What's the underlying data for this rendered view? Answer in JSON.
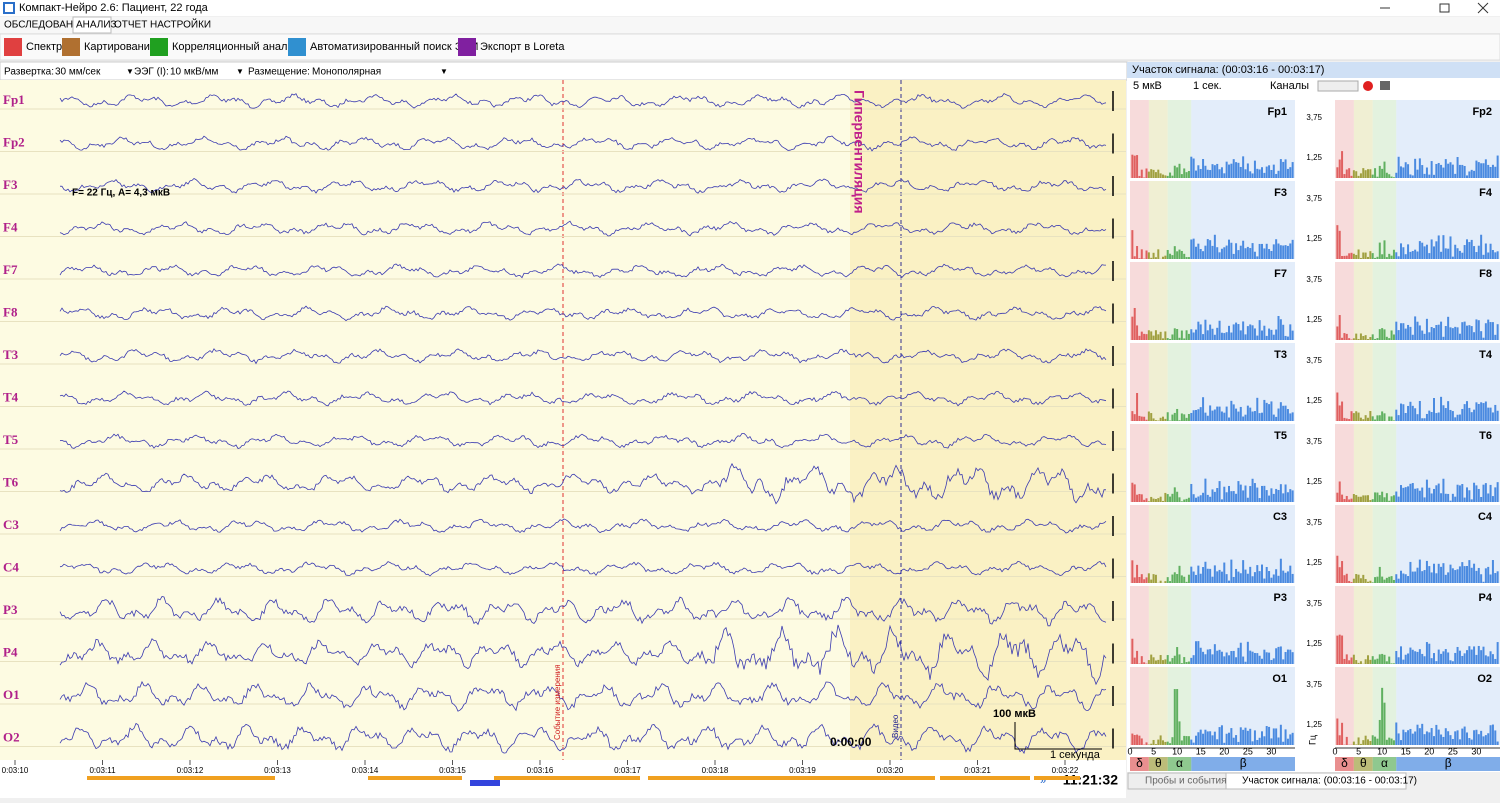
{
  "window": {
    "title": "Компакт-Нейро 2.6: Пациент, 22 года"
  },
  "menu": [
    "ОБСЛЕДОВАНИЕ",
    "АНАЛИЗ",
    "ОТЧЕТ",
    "НАСТРОЙКИ"
  ],
  "toolbar": [
    "Спектр",
    "Картирование",
    "Корреляционный анализ",
    "Автоматизированный поиск ЭПИ",
    "Экспорт в Loreta"
  ],
  "controls": {
    "sweep_label": "Развертка:",
    "sweep": "30 мм/сек",
    "gain_label": "ЭЭГ (I):",
    "gain": "10 мкВ/мм",
    "montage_label": "Размещение:",
    "montage": "Монополярная"
  },
  "eeg": {
    "channels": [
      "Fp1",
      "Fp2",
      "F3",
      "F4",
      "F7",
      "F8",
      "T3",
      "T4",
      "T5",
      "T6",
      "C3",
      "C4",
      "P3",
      "P4",
      "O1",
      "O2"
    ],
    "annotations": {
      "hyperventilation": "Гипервентиляция",
      "measure": "F= 22 Гц, A= 4,3 мкВ",
      "event": "Событие измерения",
      "video": "Видео",
      "start": "0:00:00",
      "amp_scale": "100 мкВ",
      "time_scale": "1 секунда"
    },
    "time_labels": [
      "0:03:10",
      "0:03:11",
      "0:03:12",
      "0:03:13",
      "0:03:14",
      "0:03:15",
      "0:03:16",
      "0:03:17",
      "0:03:18",
      "0:03:19",
      "0:03:20",
      "0:03:21",
      "0:03:22"
    ],
    "clock": "11:21:32"
  },
  "panel": {
    "title": "Участок сигнала: (00:03:16 - 00:03:17)",
    "amp": "5 мкВ",
    "window": "1 сек.",
    "channels_btn": "Каналы",
    "channels": [
      "Fp1",
      "Fp2",
      "F3",
      "F4",
      "F7",
      "F8",
      "T3",
      "T4",
      "T5",
      "T6",
      "C3",
      "C4",
      "P3",
      "P4",
      "O1",
      "O2"
    ],
    "yticks": [
      "3,75",
      "1,25"
    ],
    "xticks": [
      "0",
      "5",
      "10",
      "15",
      "20",
      "25",
      "30"
    ],
    "x_unit": "Гц",
    "bands": [
      "δ",
      "θ",
      "α",
      "β"
    ]
  },
  "bottom_tabs": [
    "Пробы и события",
    "Участок сигнала: (00:03:16 - 00:03:17)"
  ]
}
